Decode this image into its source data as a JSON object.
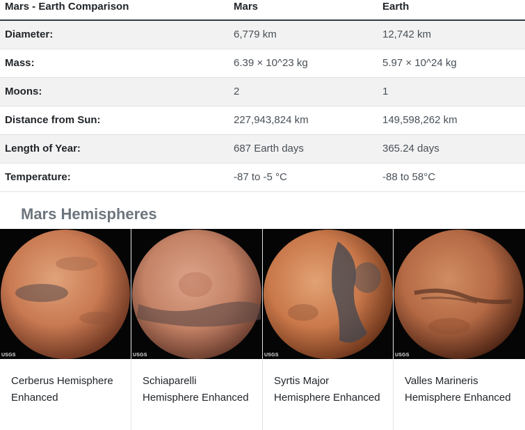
{
  "table": {
    "headers": [
      "Mars - Earth Comparison",
      "Mars",
      "Earth"
    ],
    "rows": [
      {
        "label": "Diameter:",
        "mars": "6,779 km",
        "earth": "12,742 km"
      },
      {
        "label": "Mass:",
        "mars": "6.39 × 10^23 kg",
        "earth": "5.97 × 10^24 kg"
      },
      {
        "label": "Moons:",
        "mars": "2",
        "earth": "1"
      },
      {
        "label": "Distance from Sun:",
        "mars": "227,943,824 km",
        "earth": "149,598,262 km"
      },
      {
        "label": "Length of Year:",
        "mars": "687 Earth days",
        "earth": "365.24 days"
      },
      {
        "label": "Temperature:",
        "mars": "-87 to -5 °C",
        "earth": "-88 to 58°C"
      }
    ]
  },
  "hemispheres": {
    "title": "Mars Hemispheres",
    "logo_text": "USGS",
    "items": [
      {
        "caption": "Cerberus Hemisphere Enhanced",
        "base": "#c97a52",
        "dark": "#5a4a4a"
      },
      {
        "caption": "Schiaparelli Hemisphere Enhanced",
        "base": "#c48266",
        "dark": "#5c4844"
      },
      {
        "caption": "Syrtis Major Hemisphere Enhanced",
        "base": "#c9784a",
        "dark": "#3f4650"
      },
      {
        "caption": "Valles Marineris Hemisphere Enhanced",
        "base": "#b56a45",
        "dark": "#5a3324"
      }
    ]
  }
}
